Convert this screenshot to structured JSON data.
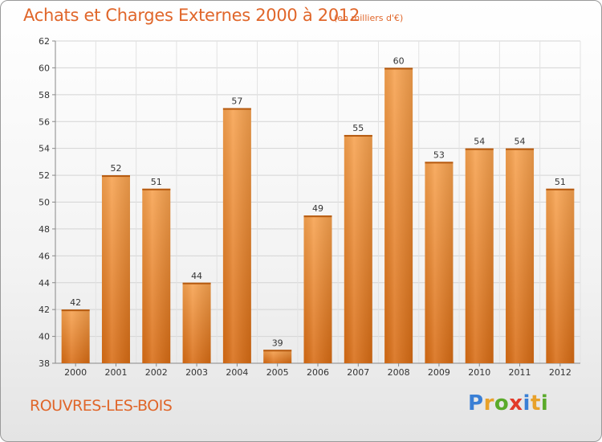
{
  "header": {
    "title": "Achats et Charges Externes 2000 à 2012",
    "subtitle": "(en milliers d'€)"
  },
  "footer": {
    "commune": "ROUVRES-LES-BOIS",
    "brand_letters": [
      "P",
      "r",
      "o",
      "x",
      "i",
      "t",
      "i"
    ],
    "brand_colors": [
      "#3a7fd5",
      "#e8a12a",
      "#5aaa2a",
      "#e23a2a",
      "#3a7fd5",
      "#e8a12a",
      "#5aaa2a"
    ]
  },
  "chart_data": {
    "type": "bar",
    "title": "Achats et Charges Externes 2000 à 2012",
    "subtitle": "(en milliers d'€)",
    "categories": [
      "2000",
      "2001",
      "2002",
      "2003",
      "2004",
      "2005",
      "2006",
      "2007",
      "2008",
      "2009",
      "2010",
      "2011",
      "2012"
    ],
    "values": [
      42,
      52,
      51,
      44,
      57,
      39,
      49,
      55,
      60,
      53,
      54,
      54,
      51
    ],
    "ylim": [
      38,
      62
    ],
    "yticks": [
      38,
      40,
      42,
      44,
      46,
      48,
      50,
      52,
      54,
      56,
      58,
      60,
      62
    ],
    "grid": true,
    "bar_color": "#f0943a",
    "data_labels": true
  }
}
